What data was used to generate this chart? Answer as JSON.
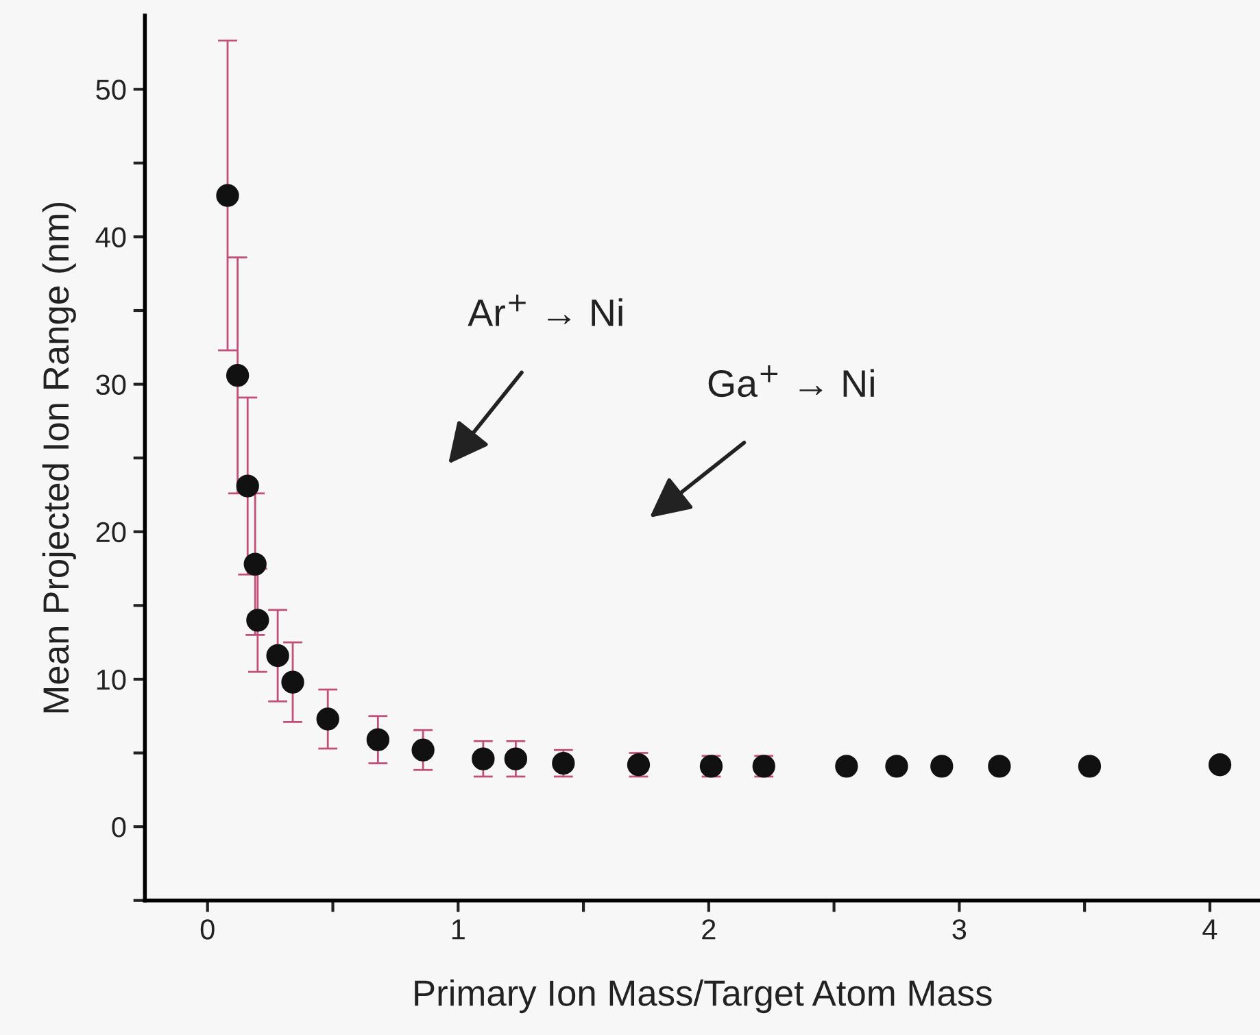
{
  "chart_data": {
    "type": "scatter",
    "xlabel": "Primary Ion Mass/Target Atom Mass",
    "ylabel": "Mean Projected Ion Range (nm)",
    "x": [
      0.08,
      0.12,
      0.16,
      0.19,
      0.2,
      0.28,
      0.34,
      0.48,
      0.68,
      0.86,
      1.1,
      1.23,
      1.42,
      1.72,
      2.01,
      2.22,
      2.55,
      2.75,
      2.93,
      3.16,
      3.52,
      4.04
    ],
    "series": [
      {
        "color": "#111111",
        "values": [
          42.8,
          30.6,
          23.1,
          17.8,
          14.0,
          11.6,
          9.8,
          7.3,
          5.9,
          5.2,
          4.6,
          4.6,
          4.3,
          4.2,
          4.1,
          4.1,
          4.1,
          4.1,
          4.1,
          4.1,
          4.1,
          4.2
        ],
        "errors": [
          10.5,
          8,
          6,
          4.8,
          3.5,
          3.1,
          2.7,
          2,
          1.6,
          1.35,
          1.2,
          1.2,
          0.9,
          0.8,
          0.7,
          0.7,
          null,
          null,
          null,
          null,
          null,
          null
        ]
      }
    ],
    "xlim": [
      -0.25,
      4.2
    ],
    "ylim": [
      -5,
      55
    ],
    "xticks": [
      0,
      {
        "value": 0.5,
        "label": null
      },
      1,
      {
        "value": 1.5,
        "label": null
      },
      2,
      {
        "value": 2.5,
        "label": null
      },
      3,
      {
        "value": 3.5,
        "label": null
      },
      4
    ],
    "yticks": [
      {
        "value": -5,
        "label": null
      },
      0,
      {
        "value": 5,
        "label": null
      },
      10,
      {
        "value": 15,
        "label": null
      },
      20,
      {
        "value": 25,
        "label": null
      },
      30,
      {
        "value": 35,
        "label": null
      },
      40,
      {
        "value": 45,
        "label": null
      },
      50
    ],
    "marker": "circle",
    "grid": false,
    "legend": false,
    "annotations": [
      "Ar$^{+}$ → Ni",
      "Ga$^{+}$ → Ni"
    ]
  }
}
